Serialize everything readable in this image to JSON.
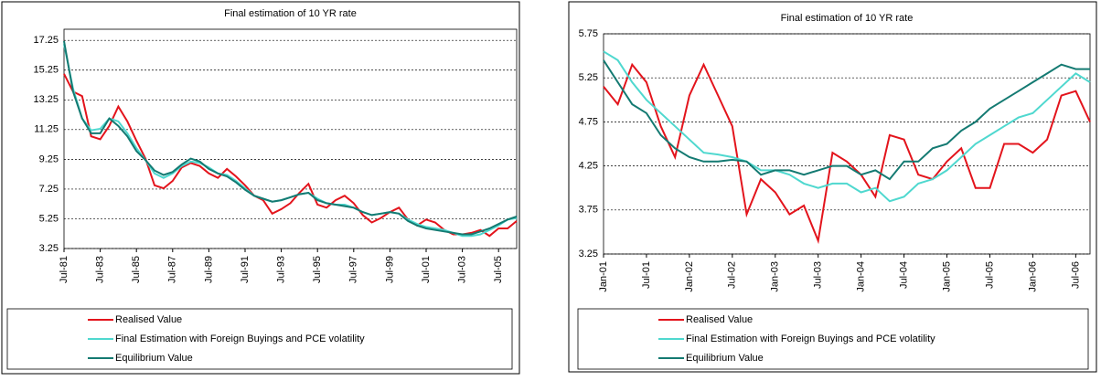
{
  "chart_data": [
    {
      "type": "line",
      "title": "Final estimation of 10 YR rate",
      "categories": [
        "Jul-81",
        null,
        null,
        null,
        "Jul-83",
        null,
        null,
        null,
        "Jul-85",
        null,
        null,
        null,
        "Jul-87",
        null,
        null,
        null,
        "Jul-89",
        null,
        null,
        null,
        "Jul-91",
        null,
        null,
        null,
        "Jul-93",
        null,
        null,
        null,
        "Jul-95",
        null,
        null,
        null,
        "Jul-97",
        null,
        null,
        null,
        "Jul-99",
        null,
        null,
        null,
        "Jul-01",
        null,
        null,
        null,
        "Jul-03",
        null,
        null,
        null,
        "Jul-05",
        null,
        null
      ],
      "series": [
        {
          "name": "Realised Value",
          "color": "#e3141c",
          "values": [
            15.0,
            13.8,
            13.5,
            10.8,
            10.6,
            11.5,
            12.8,
            11.8,
            10.5,
            9.3,
            7.5,
            7.3,
            7.8,
            8.7,
            9.0,
            8.8,
            8.3,
            8.0,
            8.6,
            8.1,
            7.5,
            6.8,
            6.5,
            5.6,
            5.9,
            6.3,
            7.0,
            7.6,
            6.2,
            6.0,
            6.5,
            6.8,
            6.3,
            5.5,
            5.0,
            5.3,
            5.7,
            6.0,
            5.2,
            4.8,
            5.2,
            5.0,
            4.5,
            4.2,
            4.2,
            4.3,
            4.5,
            4.1,
            4.6,
            4.6,
            5.1
          ]
        },
        {
          "name": "Final Estimation with Foreign Buyings and PCE volatility",
          "color": "#4fd8cf",
          "values": [
            17.0,
            14.0,
            12.0,
            11.2,
            11.3,
            12.0,
            11.8,
            11.0,
            10.0,
            9.2,
            8.3,
            8.0,
            8.3,
            8.8,
            9.1,
            9.0,
            8.7,
            8.3,
            8.2,
            7.8,
            7.3,
            6.8,
            6.6,
            6.4,
            6.5,
            6.7,
            6.9,
            7.0,
            6.6,
            6.3,
            6.2,
            6.2,
            6.0,
            5.7,
            5.5,
            5.6,
            5.7,
            5.6,
            5.2,
            4.9,
            4.7,
            4.6,
            4.5,
            4.3,
            4.1,
            4.1,
            4.2,
            4.5,
            4.8,
            5.2,
            5.3
          ]
        },
        {
          "name": "Equilibrium Value",
          "color": "#147a72",
          "values": [
            17.2,
            13.8,
            12.0,
            11.0,
            11.0,
            12.0,
            11.5,
            10.8,
            9.8,
            9.2,
            8.5,
            8.2,
            8.4,
            8.9,
            9.3,
            9.1,
            8.6,
            8.3,
            8.1,
            7.7,
            7.2,
            6.8,
            6.6,
            6.4,
            6.5,
            6.7,
            6.9,
            7.0,
            6.5,
            6.3,
            6.2,
            6.1,
            6.0,
            5.7,
            5.5,
            5.6,
            5.7,
            5.6,
            5.1,
            4.8,
            4.6,
            4.5,
            4.4,
            4.3,
            4.2,
            4.2,
            4.4,
            4.6,
            4.9,
            5.2,
            5.4
          ]
        }
      ],
      "ylim": [
        3.25,
        18
      ],
      "yticks": [
        3.25,
        5.25,
        7.25,
        9.25,
        11.25,
        13.25,
        15.25,
        17.25
      ],
      "grid": true,
      "legend": "bottom"
    },
    {
      "type": "line",
      "title": "Final estimation of 10 YR rate",
      "categories": [
        "Jan-01",
        null,
        null,
        "Jul-01",
        null,
        null,
        "Jan-02",
        null,
        null,
        "Jul-02",
        null,
        null,
        "Jan-03",
        null,
        null,
        "Jul-03",
        null,
        null,
        "Jan-04",
        null,
        null,
        "Jul-04",
        null,
        null,
        "Jan-05",
        null,
        null,
        "Jul-05",
        null,
        null,
        "Jan-06",
        null,
        null,
        "Jul-06",
        null
      ],
      "series": [
        {
          "name": "Realised Value",
          "color": "#e3141c",
          "values": [
            5.15,
            4.95,
            5.4,
            5.2,
            4.7,
            4.35,
            5.05,
            5.4,
            5.05,
            4.7,
            3.7,
            4.1,
            3.95,
            3.7,
            3.8,
            3.4,
            4.4,
            4.3,
            4.15,
            3.9,
            4.6,
            4.55,
            4.15,
            4.1,
            4.3,
            4.45,
            4.0,
            4.0,
            4.5,
            4.5,
            4.4,
            4.55,
            5.05,
            5.1,
            4.75
          ]
        },
        {
          "name": "Final Estimation with Foreign Buyings and PCE volatility",
          "color": "#4fd8cf",
          "values": [
            5.55,
            5.45,
            5.2,
            5.0,
            4.85,
            4.7,
            4.55,
            4.4,
            4.38,
            4.35,
            4.3,
            4.2,
            4.2,
            4.15,
            4.05,
            4.0,
            4.05,
            4.05,
            3.95,
            4.0,
            3.85,
            3.9,
            4.05,
            4.1,
            4.2,
            4.35,
            4.5,
            4.6,
            4.7,
            4.8,
            4.85,
            5.0,
            5.15,
            5.3,
            5.2
          ]
        },
        {
          "name": "Equilibrium Value",
          "color": "#147a72",
          "values": [
            5.45,
            5.2,
            4.95,
            4.85,
            4.6,
            4.45,
            4.35,
            4.3,
            4.3,
            4.32,
            4.3,
            4.15,
            4.2,
            4.2,
            4.15,
            4.2,
            4.25,
            4.25,
            4.15,
            4.2,
            4.1,
            4.3,
            4.3,
            4.45,
            4.5,
            4.65,
            4.75,
            4.9,
            5.0,
            5.1,
            5.2,
            5.3,
            5.4,
            5.35,
            5.35
          ]
        }
      ],
      "ylim": [
        3.25,
        5.75
      ],
      "yticks": [
        3.25,
        3.75,
        4.25,
        4.75,
        5.25,
        5.75
      ],
      "grid": true,
      "legend": "bottom"
    }
  ]
}
